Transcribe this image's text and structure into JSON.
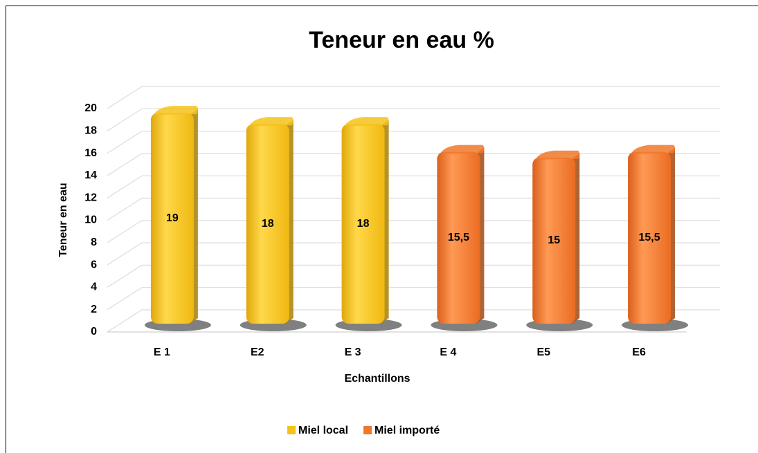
{
  "chart_data": {
    "type": "bar",
    "title": "Teneur en eau %",
    "x_label": "Echantillons",
    "y_label": "Teneur en eau",
    "categories": [
      "E 1",
      "E2",
      "E 3",
      "E 4",
      "E5",
      "E6"
    ],
    "series": [
      {
        "name": "Miel local",
        "color": "#f5c21a",
        "values": [
          19,
          18,
          18,
          null,
          null,
          null
        ],
        "value_labels": [
          "19",
          "18",
          "18",
          null,
          null,
          null
        ]
      },
      {
        "name": "Miel importé",
        "color": "#f0782c",
        "values": [
          null,
          null,
          null,
          15.5,
          15,
          15.5
        ],
        "value_labels": [
          null,
          null,
          null,
          "15,5",
          "15",
          "15,5"
        ]
      }
    ],
    "ylim": [
      0,
      20
    ],
    "yticks": [
      0,
      2,
      4,
      6,
      8,
      10,
      12,
      14,
      16,
      18,
      20
    ],
    "grid": true,
    "legend": "bottom"
  }
}
